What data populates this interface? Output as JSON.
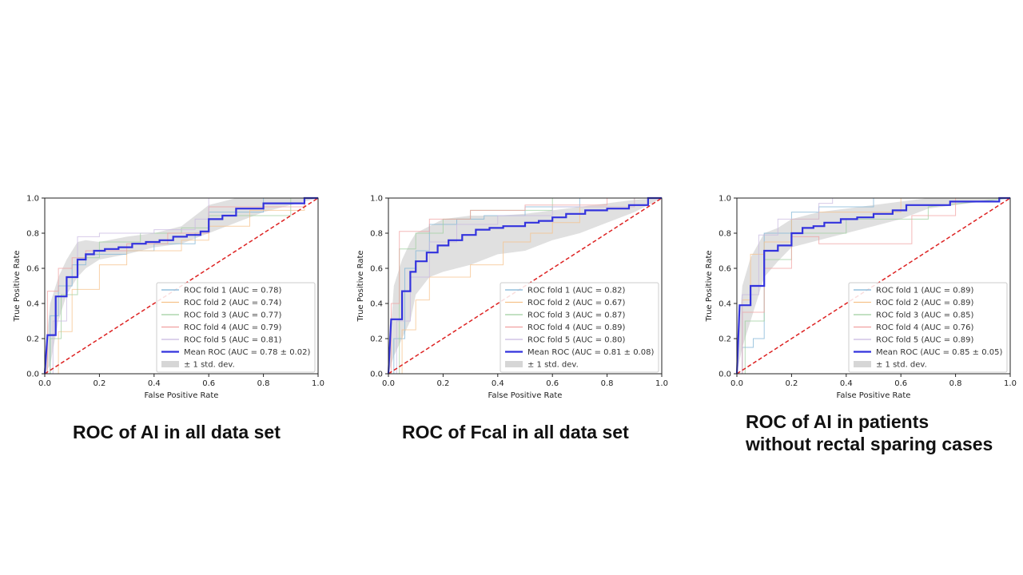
{
  "chart_data": [
    {
      "type": "line",
      "caption": "ROC of AI in all data set",
      "caption_lines": [
        "ROC of AI in all data set"
      ],
      "xlabel": "False Positive Rate",
      "ylabel": "True Positive Rate",
      "xlim": [
        0.0,
        1.0
      ],
      "ylim": [
        0.0,
        1.0
      ],
      "ticks": [
        "0.0",
        "0.2",
        "0.4",
        "0.6",
        "0.8",
        "1.0"
      ],
      "legend_position": "lower right",
      "grid": false,
      "colors": {
        "mean": "#3333dd",
        "band": "#bbbbbb",
        "chance": "#dd2222"
      },
      "fold_colors": [
        "#7fb4d6",
        "#f5c28b",
        "#9fcf9f",
        "#f0a0a0",
        "#c8b8e0"
      ],
      "series": [
        {
          "name": "ROC fold 1 (AUC = 0.78)",
          "x": [
            0,
            0.02,
            0.02,
            0.05,
            0.05,
            0.1,
            0.1,
            0.15,
            0.15,
            0.3,
            0.3,
            0.4,
            0.4,
            0.55,
            0.55,
            0.6,
            0.6,
            0.8,
            0.8,
            1
          ],
          "y": [
            0,
            0,
            0.33,
            0.33,
            0.5,
            0.5,
            0.62,
            0.62,
            0.68,
            0.68,
            0.7,
            0.7,
            0.74,
            0.74,
            0.8,
            0.8,
            0.92,
            0.92,
            1,
            1
          ]
        },
        {
          "name": "ROC fold 2 (AUC = 0.74)",
          "x": [
            0,
            0.05,
            0.05,
            0.1,
            0.1,
            0.2,
            0.2,
            0.3,
            0.3,
            0.5,
            0.5,
            0.6,
            0.6,
            0.75,
            0.75,
            0.95,
            0.95,
            1
          ],
          "y": [
            0,
            0,
            0.24,
            0.24,
            0.48,
            0.48,
            0.62,
            0.62,
            0.7,
            0.7,
            0.76,
            0.76,
            0.84,
            0.84,
            0.93,
            0.93,
            1,
            1
          ]
        },
        {
          "name": "ROC fold 3 (AUC = 0.77)",
          "x": [
            0,
            0.02,
            0.02,
            0.06,
            0.06,
            0.12,
            0.12,
            0.2,
            0.2,
            0.35,
            0.35,
            0.5,
            0.5,
            0.6,
            0.6,
            0.9,
            0.9,
            1
          ],
          "y": [
            0,
            0,
            0.2,
            0.2,
            0.45,
            0.45,
            0.66,
            0.66,
            0.75,
            0.75,
            0.8,
            0.8,
            0.83,
            0.83,
            0.9,
            0.9,
            1,
            1
          ]
        },
        {
          "name": "ROC fold 4 (AUC = 0.79)",
          "x": [
            0,
            0.01,
            0.01,
            0.05,
            0.05,
            0.1,
            0.1,
            0.15,
            0.15,
            0.3,
            0.3,
            0.45,
            0.45,
            0.6,
            0.6,
            0.95,
            0.95,
            1
          ],
          "y": [
            0,
            0,
            0.47,
            0.47,
            0.6,
            0.6,
            0.66,
            0.66,
            0.7,
            0.7,
            0.74,
            0.74,
            0.8,
            0.8,
            0.95,
            0.95,
            1,
            1
          ]
        },
        {
          "name": "ROC fold 5 (AUC = 0.81)",
          "x": [
            0,
            0.03,
            0.03,
            0.08,
            0.08,
            0.12,
            0.12,
            0.2,
            0.2,
            0.4,
            0.4,
            0.55,
            0.55,
            0.6,
            0.6,
            0.9,
            0.9,
            1
          ],
          "y": [
            0,
            0,
            0.3,
            0.3,
            0.55,
            0.55,
            0.78,
            0.78,
            0.8,
            0.8,
            0.82,
            0.82,
            0.88,
            0.88,
            1,
            1,
            1,
            1
          ]
        },
        {
          "name": "Mean ROC (AUC = 0.78 ± 0.02)",
          "x": [
            0,
            0.01,
            0.01,
            0.04,
            0.04,
            0.08,
            0.08,
            0.12,
            0.12,
            0.15,
            0.15,
            0.18,
            0.18,
            0.22,
            0.22,
            0.27,
            0.27,
            0.32,
            0.32,
            0.37,
            0.37,
            0.42,
            0.42,
            0.47,
            0.47,
            0.52,
            0.52,
            0.57,
            0.57,
            0.6,
            0.6,
            0.65,
            0.65,
            0.7,
            0.7,
            0.8,
            0.8,
            0.95,
            0.95,
            0.98,
            0.98,
            1
          ],
          "y": [
            0,
            0.22,
            0.22,
            0.22,
            0.44,
            0.44,
            0.55,
            0.55,
            0.65,
            0.65,
            0.68,
            0.68,
            0.7,
            0.7,
            0.71,
            0.71,
            0.72,
            0.72,
            0.74,
            0.74,
            0.75,
            0.75,
            0.76,
            0.76,
            0.78,
            0.78,
            0.79,
            0.79,
            0.81,
            0.81,
            0.88,
            0.88,
            0.9,
            0.9,
            0.94,
            0.94,
            0.97,
            0.97,
            1,
            1,
            1,
            1
          ]
        },
        {
          "name": "± 1 std. dev.",
          "x": [
            0,
            0.02,
            0.05,
            0.08,
            0.12,
            0.15,
            0.2,
            0.3,
            0.4,
            0.5,
            0.6,
            0.7,
            0.8,
            0.9,
            1
          ],
          "y_lower": [
            0,
            0.05,
            0.3,
            0.45,
            0.55,
            0.6,
            0.65,
            0.68,
            0.72,
            0.74,
            0.8,
            0.86,
            0.92,
            0.96,
            1
          ],
          "y_upper": [
            0.1,
            0.4,
            0.55,
            0.65,
            0.75,
            0.76,
            0.75,
            0.78,
            0.8,
            0.84,
            0.96,
            1,
            1,
            1,
            1
          ]
        }
      ]
    },
    {
      "type": "line",
      "caption": "ROC of Fcal in all data set",
      "caption_lines": [
        "ROC of Fcal in all data set"
      ],
      "xlabel": "False Positive Rate",
      "ylabel": "True Positive Rate",
      "xlim": [
        0.0,
        1.0
      ],
      "ylim": [
        0.0,
        1.0
      ],
      "ticks": [
        "0.0",
        "0.2",
        "0.4",
        "0.6",
        "0.8",
        "1.0"
      ],
      "legend_position": "lower right",
      "grid": false,
      "colors": {
        "mean": "#3333dd",
        "band": "#bbbbbb",
        "chance": "#dd2222"
      },
      "fold_colors": [
        "#7fb4d6",
        "#f5c28b",
        "#9fcf9f",
        "#f0a0a0",
        "#c8b8e0"
      ],
      "series": [
        {
          "name": "ROC fold 1 (AUC = 0.82)",
          "x": [
            0,
            0.02,
            0.02,
            0.06,
            0.06,
            0.1,
            0.1,
            0.15,
            0.15,
            0.25,
            0.25,
            0.35,
            0.35,
            0.5,
            0.5,
            0.7,
            0.7,
            1
          ],
          "y": [
            0,
            0,
            0.2,
            0.2,
            0.6,
            0.6,
            0.7,
            0.7,
            0.85,
            0.85,
            0.88,
            0.88,
            0.9,
            0.9,
            0.95,
            0.95,
            1,
            1
          ]
        },
        {
          "name": "ROC fold 2 (AUC = 0.67)",
          "x": [
            0,
            0.05,
            0.05,
            0.1,
            0.1,
            0.15,
            0.15,
            0.3,
            0.3,
            0.42,
            0.42,
            0.52,
            0.52,
            0.6,
            0.6,
            0.7,
            0.7,
            0.9,
            0.9,
            1
          ],
          "y": [
            0,
            0,
            0.25,
            0.25,
            0.42,
            0.42,
            0.55,
            0.55,
            0.62,
            0.62,
            0.75,
            0.75,
            0.8,
            0.8,
            0.86,
            0.86,
            0.95,
            0.95,
            1,
            1
          ]
        },
        {
          "name": "ROC fold 3 (AUC = 0.87)",
          "x": [
            0,
            0.04,
            0.04,
            0.1,
            0.1,
            0.2,
            0.2,
            0.3,
            0.3,
            0.6,
            0.6,
            1
          ],
          "y": [
            0,
            0,
            0.71,
            0.71,
            0.8,
            0.8,
            0.88,
            0.88,
            0.93,
            0.93,
            1,
            1
          ]
        },
        {
          "name": "ROC fold 4 (AUC = 0.89)",
          "x": [
            0,
            0.01,
            0.01,
            0.04,
            0.04,
            0.15,
            0.15,
            0.3,
            0.3,
            0.5,
            0.5,
            0.8,
            0.8,
            1
          ],
          "y": [
            0,
            0,
            0.4,
            0.4,
            0.81,
            0.81,
            0.88,
            0.88,
            0.93,
            0.93,
            0.96,
            0.96,
            1,
            1
          ]
        },
        {
          "name": "ROC fold 5 (AUC = 0.80)",
          "x": [
            0,
            0.03,
            0.03,
            0.08,
            0.08,
            0.15,
            0.15,
            0.25,
            0.25,
            0.4,
            0.4,
            0.6,
            0.6,
            0.9,
            0.9,
            1
          ],
          "y": [
            0,
            0,
            0.3,
            0.3,
            0.55,
            0.55,
            0.75,
            0.75,
            0.85,
            0.85,
            0.9,
            0.9,
            0.95,
            0.95,
            1,
            1
          ]
        },
        {
          "name": "Mean ROC (AUC = 0.81 ± 0.08)",
          "x": [
            0,
            0.01,
            0.01,
            0.05,
            0.05,
            0.08,
            0.08,
            0.1,
            0.1,
            0.14,
            0.14,
            0.18,
            0.18,
            0.22,
            0.22,
            0.27,
            0.27,
            0.32,
            0.32,
            0.37,
            0.37,
            0.42,
            0.42,
            0.5,
            0.5,
            0.55,
            0.55,
            0.6,
            0.6,
            0.65,
            0.65,
            0.72,
            0.72,
            0.8,
            0.8,
            0.88,
            0.88,
            0.95,
            0.95,
            1
          ],
          "y": [
            0,
            0.31,
            0.31,
            0.31,
            0.47,
            0.47,
            0.58,
            0.58,
            0.64,
            0.64,
            0.69,
            0.69,
            0.73,
            0.73,
            0.76,
            0.76,
            0.79,
            0.79,
            0.82,
            0.82,
            0.83,
            0.83,
            0.84,
            0.84,
            0.86,
            0.86,
            0.87,
            0.87,
            0.89,
            0.89,
            0.91,
            0.91,
            0.93,
            0.93,
            0.94,
            0.94,
            0.96,
            0.96,
            1,
            1
          ]
        },
        {
          "name": "± 1 std. dev.",
          "x": [
            0,
            0.02,
            0.05,
            0.08,
            0.1,
            0.15,
            0.2,
            0.3,
            0.4,
            0.5,
            0.6,
            0.7,
            0.8,
            0.9,
            1
          ],
          "y_lower": [
            0,
            0.1,
            0.2,
            0.3,
            0.45,
            0.55,
            0.58,
            0.62,
            0.68,
            0.7,
            0.76,
            0.8,
            0.86,
            0.92,
            1
          ],
          "y_upper": [
            0.05,
            0.5,
            0.65,
            0.75,
            0.8,
            0.84,
            0.88,
            0.9,
            0.9,
            0.91,
            0.93,
            0.95,
            0.97,
            0.99,
            1
          ]
        }
      ]
    },
    {
      "type": "line",
      "caption": "ROC of AI in patients without rectal sparing cases",
      "caption_lines": [
        "ROC of AI in patients",
        "without rectal sparing cases"
      ],
      "xlabel": "False Positive Rate",
      "ylabel": "True Positive Rate",
      "xlim": [
        0.0,
        1.0
      ],
      "ylim": [
        0.0,
        1.0
      ],
      "ticks": [
        "0.0",
        "0.2",
        "0.4",
        "0.6",
        "0.8",
        "1.0"
      ],
      "legend_position": "lower right",
      "grid": false,
      "colors": {
        "mean": "#3333dd",
        "band": "#bbbbbb",
        "chance": "#dd2222"
      },
      "fold_colors": [
        "#7fb4d6",
        "#f5c28b",
        "#9fcf9f",
        "#f0a0a0",
        "#c8b8e0"
      ],
      "series": [
        {
          "name": "ROC fold 1 (AUC = 0.89)",
          "x": [
            0,
            0.02,
            0.02,
            0.06,
            0.06,
            0.1,
            0.1,
            0.2,
            0.2,
            0.3,
            0.3,
            0.5,
            0.5,
            1
          ],
          "y": [
            0,
            0,
            0.15,
            0.15,
            0.2,
            0.2,
            0.8,
            0.8,
            0.92,
            0.92,
            0.95,
            0.95,
            1,
            1
          ]
        },
        {
          "name": "ROC fold 2 (AUC = 0.89)",
          "x": [
            0,
            0.02,
            0.02,
            0.05,
            0.05,
            0.1,
            0.1,
            0.2,
            0.2,
            0.3,
            0.3,
            0.6,
            0.6,
            1
          ],
          "y": [
            0,
            0,
            0.42,
            0.42,
            0.68,
            0.68,
            0.75,
            0.75,
            0.88,
            0.88,
            0.92,
            0.92,
            1,
            1
          ]
        },
        {
          "name": "ROC fold 3 (AUC = 0.85)",
          "x": [
            0,
            0.03,
            0.03,
            0.1,
            0.1,
            0.2,
            0.2,
            0.4,
            0.4,
            0.7,
            0.7,
            1
          ],
          "y": [
            0,
            0,
            0.3,
            0.3,
            0.65,
            0.65,
            0.8,
            0.8,
            0.88,
            0.88,
            0.95,
            1
          ]
        },
        {
          "name": "ROC fold 4 (AUC = 0.76)",
          "x": [
            0,
            0.02,
            0.02,
            0.1,
            0.1,
            0.2,
            0.2,
            0.3,
            0.3,
            0.64,
            0.64,
            0.8,
            0.8,
            1
          ],
          "y": [
            0,
            0,
            0.35,
            0.35,
            0.6,
            0.6,
            0.78,
            0.78,
            0.74,
            0.74,
            0.9,
            0.9,
            1,
            1
          ]
        },
        {
          "name": "ROC fold 5 (AUC = 0.89)",
          "x": [
            0,
            0.02,
            0.02,
            0.08,
            0.08,
            0.15,
            0.15,
            0.3,
            0.3,
            0.35,
            0.35,
            1
          ],
          "y": [
            0,
            0,
            0.45,
            0.45,
            0.79,
            0.79,
            0.88,
            0.88,
            0.97,
            0.97,
            1,
            1
          ]
        },
        {
          "name": "Mean ROC (AUC = 0.85 ± 0.05)",
          "x": [
            0,
            0.01,
            0.01,
            0.05,
            0.05,
            0.1,
            0.1,
            0.15,
            0.15,
            0.2,
            0.2,
            0.24,
            0.24,
            0.28,
            0.28,
            0.32,
            0.32,
            0.38,
            0.38,
            0.44,
            0.44,
            0.5,
            0.5,
            0.57,
            0.57,
            0.62,
            0.62,
            0.78,
            0.78,
            0.96,
            0.96,
            1
          ],
          "y": [
            0,
            0.39,
            0.39,
            0.39,
            0.5,
            0.5,
            0.7,
            0.7,
            0.73,
            0.73,
            0.8,
            0.8,
            0.83,
            0.83,
            0.84,
            0.84,
            0.86,
            0.86,
            0.88,
            0.88,
            0.89,
            0.89,
            0.91,
            0.91,
            0.93,
            0.93,
            0.96,
            0.96,
            0.98,
            0.98,
            1,
            1
          ]
        },
        {
          "name": "± 1 std. dev.",
          "x": [
            0,
            0.02,
            0.05,
            0.1,
            0.15,
            0.2,
            0.3,
            0.4,
            0.5,
            0.6,
            0.7,
            0.8,
            0.9,
            1
          ],
          "y_lower": [
            0,
            0.15,
            0.3,
            0.55,
            0.64,
            0.72,
            0.76,
            0.8,
            0.84,
            0.88,
            0.94,
            0.96,
            0.98,
            1
          ],
          "y_upper": [
            0.1,
            0.5,
            0.66,
            0.8,
            0.83,
            0.88,
            0.92,
            0.94,
            0.96,
            0.98,
            1,
            1,
            1,
            1
          ]
        }
      ]
    }
  ]
}
